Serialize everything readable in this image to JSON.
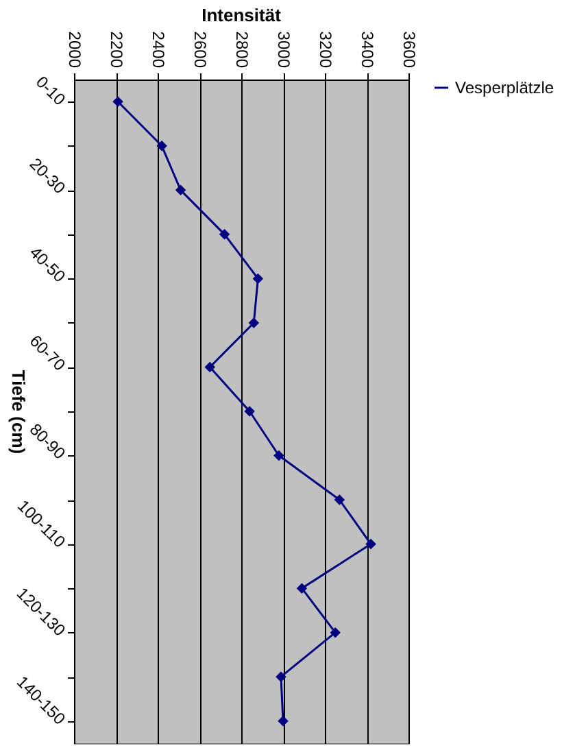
{
  "chart_data": {
    "type": "line",
    "orientation": "horizontal",
    "title": "Intensität",
    "ylabel": "Tiefe (cm)",
    "categories": [
      "0-10",
      null,
      "20-30",
      null,
      "40-50",
      null,
      "60-70",
      null,
      "80-90",
      null,
      "100-110",
      null,
      "120-130",
      null,
      "140-150"
    ],
    "series": [
      {
        "name": "Vesperplätzle",
        "color": "#000080",
        "values": [
          2210,
          2420,
          2510,
          2720,
          2880,
          2860,
          2650,
          2840,
          2980,
          3270,
          3420,
          3090,
          3250,
          2990,
          3000
        ]
      }
    ],
    "xlim": [
      2000,
      3600
    ],
    "xticks": [
      2000,
      2200,
      2400,
      2600,
      2800,
      3000,
      3200,
      3400,
      3600
    ],
    "grid": "x",
    "legend": "right",
    "marker": "diamond",
    "line_style": "solid"
  }
}
